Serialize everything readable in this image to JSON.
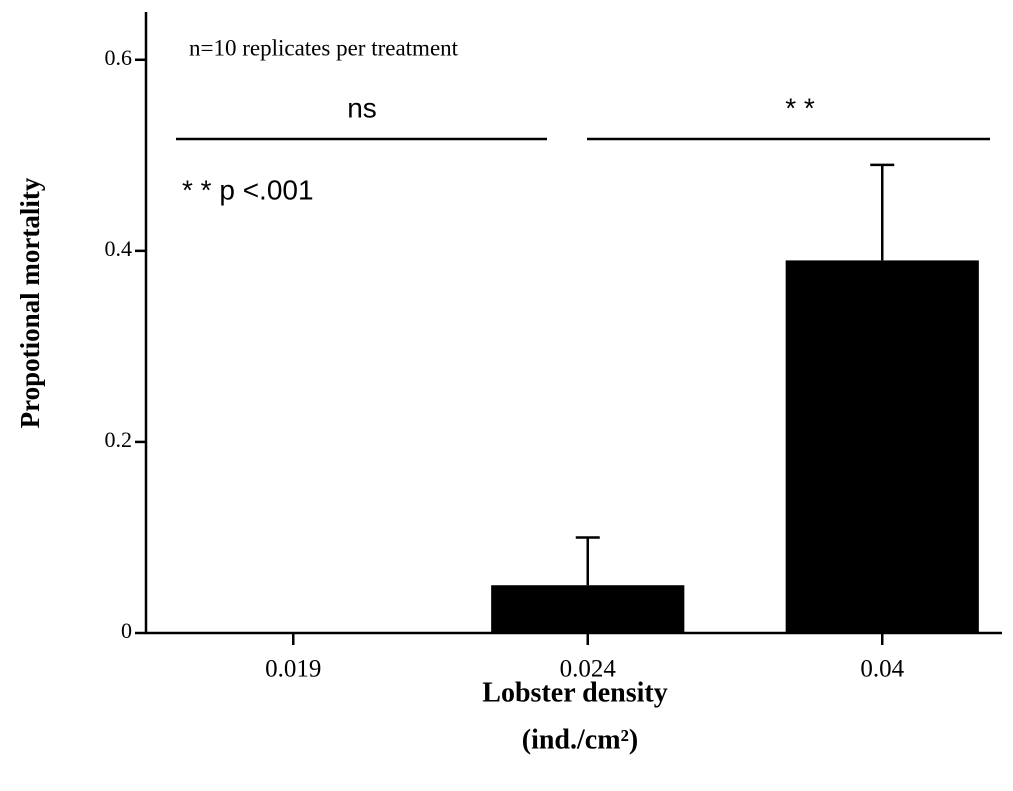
{
  "chart_data": {
    "type": "bar",
    "annotation": "n=10 replicates per treatment",
    "significance": [
      "ns",
      "* *"
    ],
    "significance_note": "* * p <.001",
    "x_label": [
      "Lobster density",
      "(ind./cm²)"
    ],
    "y_label": "Propotional mortality",
    "categories": [
      "0.019",
      "0.024",
      "0.04"
    ],
    "values": [
      0,
      0.05,
      0.39
    ],
    "errors": [
      null,
      0.05,
      0.1
    ],
    "color": "#000000",
    "ylim": [
      0,
      0.65
    ],
    "yticks": [
      0,
      0.2,
      0.4,
      0.6
    ]
  }
}
